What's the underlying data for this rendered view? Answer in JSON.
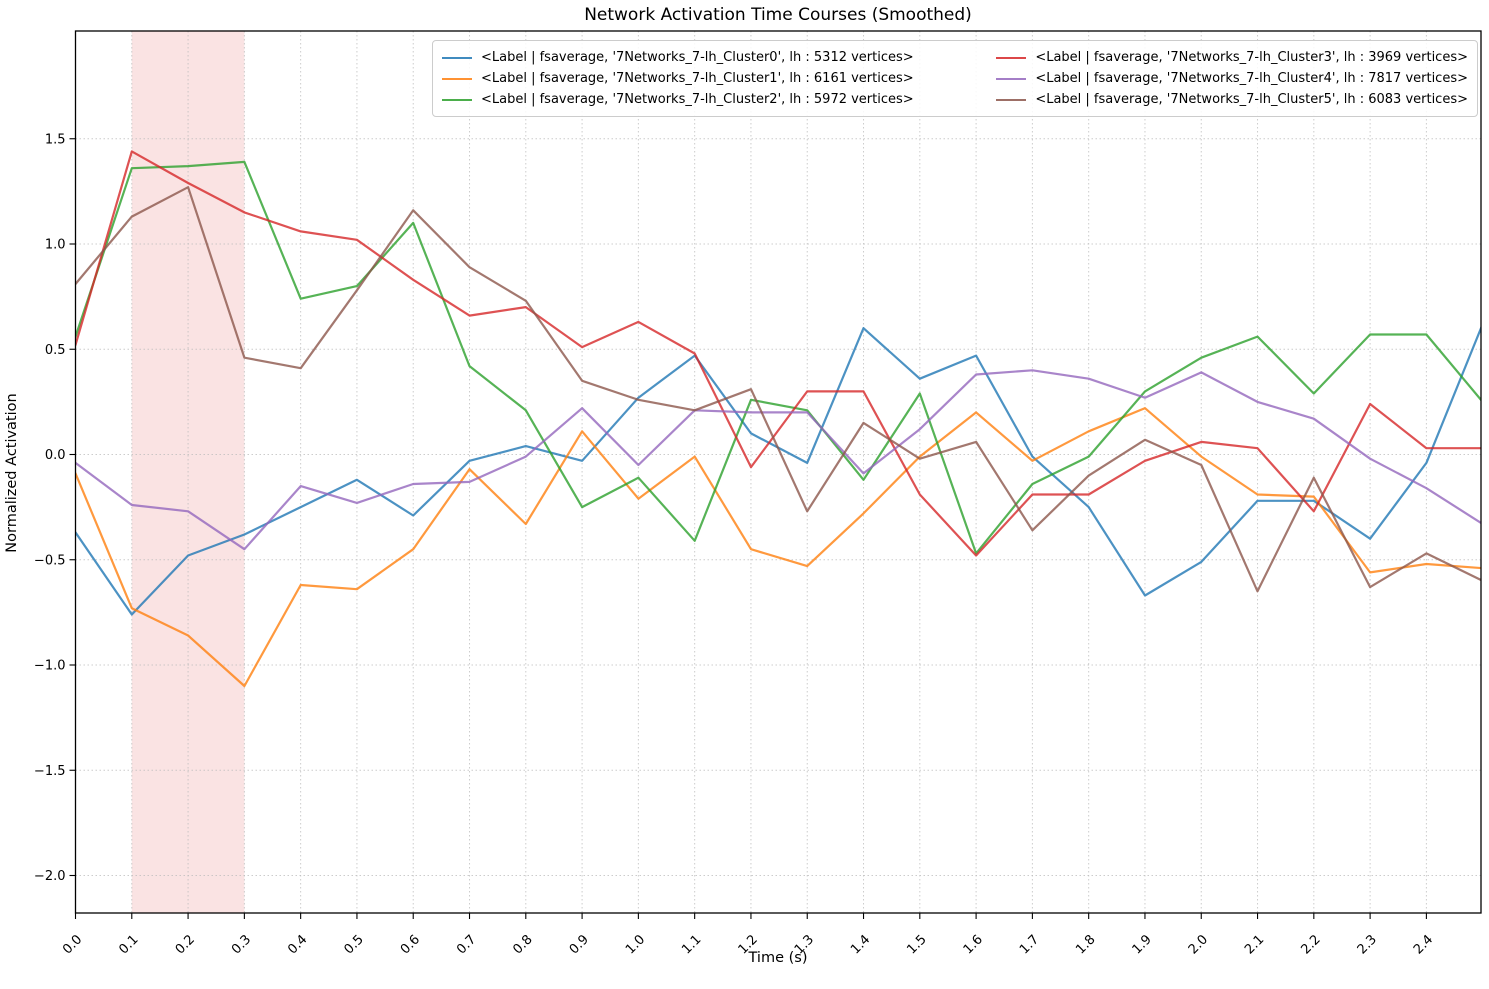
{
  "chart_data": {
    "type": "line",
    "title": "Network Activation Time Courses (Smoothed)",
    "xlabel": "Time (s)",
    "ylabel": "Normalized Activation",
    "grid": true,
    "grid_style": "dotted",
    "line_alpha": 0.8,
    "line_width": 2.2,
    "xlim": [
      0.0,
      2.497
    ],
    "ylim": [
      -2.18,
      2.01
    ],
    "xticks": [
      0.0,
      0.1,
      0.2,
      0.3,
      0.4,
      0.5,
      0.6,
      0.7,
      0.8,
      0.9,
      1.0,
      1.1,
      1.2,
      1.3,
      1.4,
      1.5,
      1.6,
      1.7,
      1.8,
      1.9,
      2.0,
      2.1,
      2.2,
      2.3,
      2.4
    ],
    "yticks": [
      -2.0,
      -1.5,
      -1.0,
      -0.5,
      0.0,
      0.5,
      1.0,
      1.5
    ],
    "highlight_span": {
      "x0": 0.1,
      "x1": 0.3,
      "color": "#d62728",
      "alpha": 0.13
    },
    "legend": {
      "position": "upper center",
      "columns": 2
    },
    "x": [
      0.0,
      0.1,
      0.2,
      0.3,
      0.4,
      0.5,
      0.6,
      0.7,
      0.8,
      0.9,
      1.0,
      1.1,
      1.2,
      1.3,
      1.4,
      1.5,
      1.6,
      1.7,
      1.8,
      1.9,
      2.0,
      2.1,
      2.2,
      2.3,
      2.4,
      2.5
    ],
    "series": [
      {
        "name": "<Label | fsaverage, '7Networks_7-lh_Cluster0', lh : 5312 vertices>",
        "color": "#1f77b4",
        "values": [
          -0.37,
          -0.76,
          -0.48,
          -0.38,
          -0.25,
          -0.12,
          -0.29,
          -0.03,
          0.04,
          -0.03,
          0.27,
          0.47,
          0.1,
          -0.04,
          0.6,
          0.36,
          0.47,
          -0.01,
          -0.25,
          -0.67,
          -0.51,
          -0.22,
          -0.22,
          -0.4,
          -0.04,
          0.62
        ]
      },
      {
        "name": "<Label | fsaverage, '7Networks_7-lh_Cluster1', lh : 6161 vertices>",
        "color": "#ff7f0e",
        "values": [
          -0.09,
          -0.73,
          -0.86,
          -1.1,
          -0.62,
          -0.64,
          -0.45,
          -0.07,
          -0.33,
          0.11,
          -0.21,
          -0.01,
          -0.45,
          -0.53,
          -0.28,
          -0.01,
          0.2,
          -0.03,
          0.11,
          0.22,
          -0.01,
          -0.19,
          -0.2,
          -0.56,
          -0.52,
          -0.54
        ]
      },
      {
        "name": "<Label | fsaverage, '7Networks_7-lh_Cluster2', lh : 5972 vertices>",
        "color": "#2ca02c",
        "values": [
          0.56,
          1.36,
          1.37,
          1.39,
          0.74,
          0.8,
          1.1,
          0.42,
          0.21,
          -0.25,
          -0.11,
          -0.41,
          0.26,
          0.21,
          -0.12,
          0.29,
          -0.47,
          -0.14,
          -0.01,
          0.3,
          0.46,
          0.56,
          0.29,
          0.57,
          0.57,
          0.25
        ]
      },
      {
        "name": "<Label | fsaverage, '7Networks_7-lh_Cluster3', lh : 3969 vertices>",
        "color": "#d62728",
        "values": [
          0.52,
          1.44,
          1.29,
          1.15,
          1.06,
          1.02,
          0.83,
          0.66,
          0.7,
          0.51,
          0.63,
          0.48,
          -0.06,
          0.3,
          0.3,
          -0.19,
          -0.48,
          -0.19,
          -0.19,
          -0.03,
          0.06,
          0.03,
          -0.27,
          0.24,
          0.03,
          0.03
        ]
      },
      {
        "name": "<Label | fsaverage, '7Networks_7-lh_Cluster4', lh : 7817 vertices>",
        "color": "#9467bd",
        "values": [
          -0.04,
          -0.24,
          -0.27,
          -0.45,
          -0.15,
          -0.23,
          -0.14,
          -0.13,
          -0.01,
          0.22,
          -0.05,
          0.21,
          0.2,
          0.2,
          -0.09,
          0.12,
          0.38,
          0.4,
          0.36,
          0.27,
          0.39,
          0.25,
          0.17,
          -0.02,
          -0.16,
          -0.33
        ]
      },
      {
        "name": "<Label | fsaverage, '7Networks_7-lh_Cluster5', lh : 6083 vertices>",
        "color": "#8c564b",
        "values": [
          0.81,
          1.13,
          1.27,
          0.46,
          0.41,
          0.78,
          1.16,
          0.89,
          0.73,
          0.35,
          0.26,
          0.21,
          0.31,
          -0.27,
          0.15,
          -0.02,
          0.06,
          -0.36,
          -0.1,
          0.07,
          -0.05,
          -0.65,
          -0.11,
          -0.63,
          -0.47,
          -0.6
        ]
      }
    ]
  }
}
